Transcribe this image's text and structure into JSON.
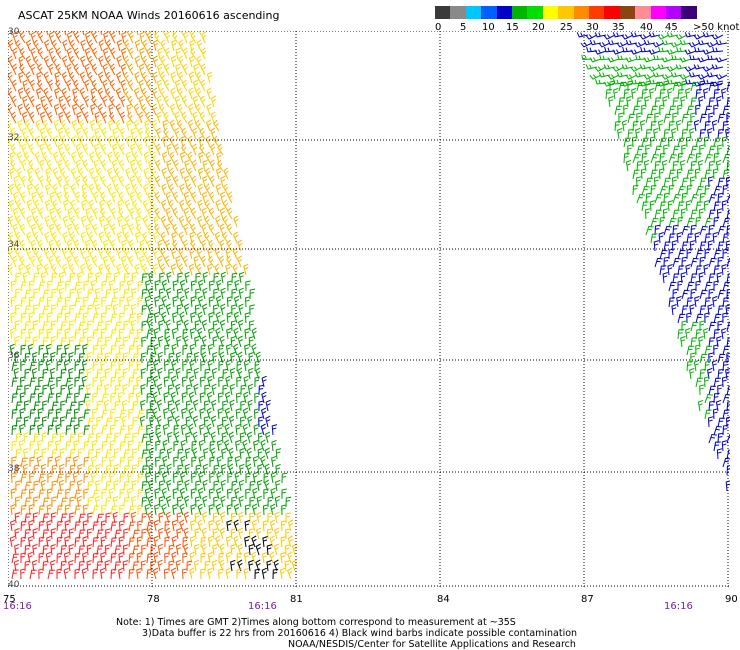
{
  "title": "ASCAT 25KM NOAA Winds 20160616 ascending",
  "colorbar": {
    "segments": [
      {
        "color": "#3a3a3a"
      },
      {
        "color": "#8a8a8a"
      },
      {
        "color": "#00c8ff"
      },
      {
        "color": "#0060ff"
      },
      {
        "color": "#0000c8"
      },
      {
        "color": "#00b400"
      },
      {
        "color": "#00e000"
      },
      {
        "color": "#ffff00"
      },
      {
        "color": "#ffc800"
      },
      {
        "color": "#ff8c00"
      },
      {
        "color": "#ff3c00"
      },
      {
        "color": "#ff0000"
      },
      {
        "color": "#8b4513"
      },
      {
        "color": "#ff8c96"
      },
      {
        "color": "#ff00ff"
      },
      {
        "color": "#b400ff"
      },
      {
        "color": "#3c0078"
      }
    ],
    "labels": [
      "0",
      "5",
      "10",
      "15",
      "20",
      "25",
      "30",
      "35",
      "40",
      "45",
      ">50 knots"
    ]
  },
  "map": {
    "lat_labels": [
      "30",
      "32",
      "34",
      "36",
      "38",
      "40"
    ],
    "lon_labels": [
      "75",
      "78",
      "81",
      "84",
      "87",
      "90"
    ],
    "time_labels": [
      "16:16",
      "16:16",
      "16:16"
    ],
    "gridline_color": "#000000",
    "contamination_color": "#000000"
  },
  "notes": {
    "line1": "Note: 1) Times are GMT 2)Times along bottom correspond to measurement at ~35S",
    "line2": "3)Data buffer is 22 hrs from 20160616 4) Black wind barbs indicate possible contamination",
    "line3": "NOAA/NESDIS/Center for Satellite Applications and Research"
  }
}
